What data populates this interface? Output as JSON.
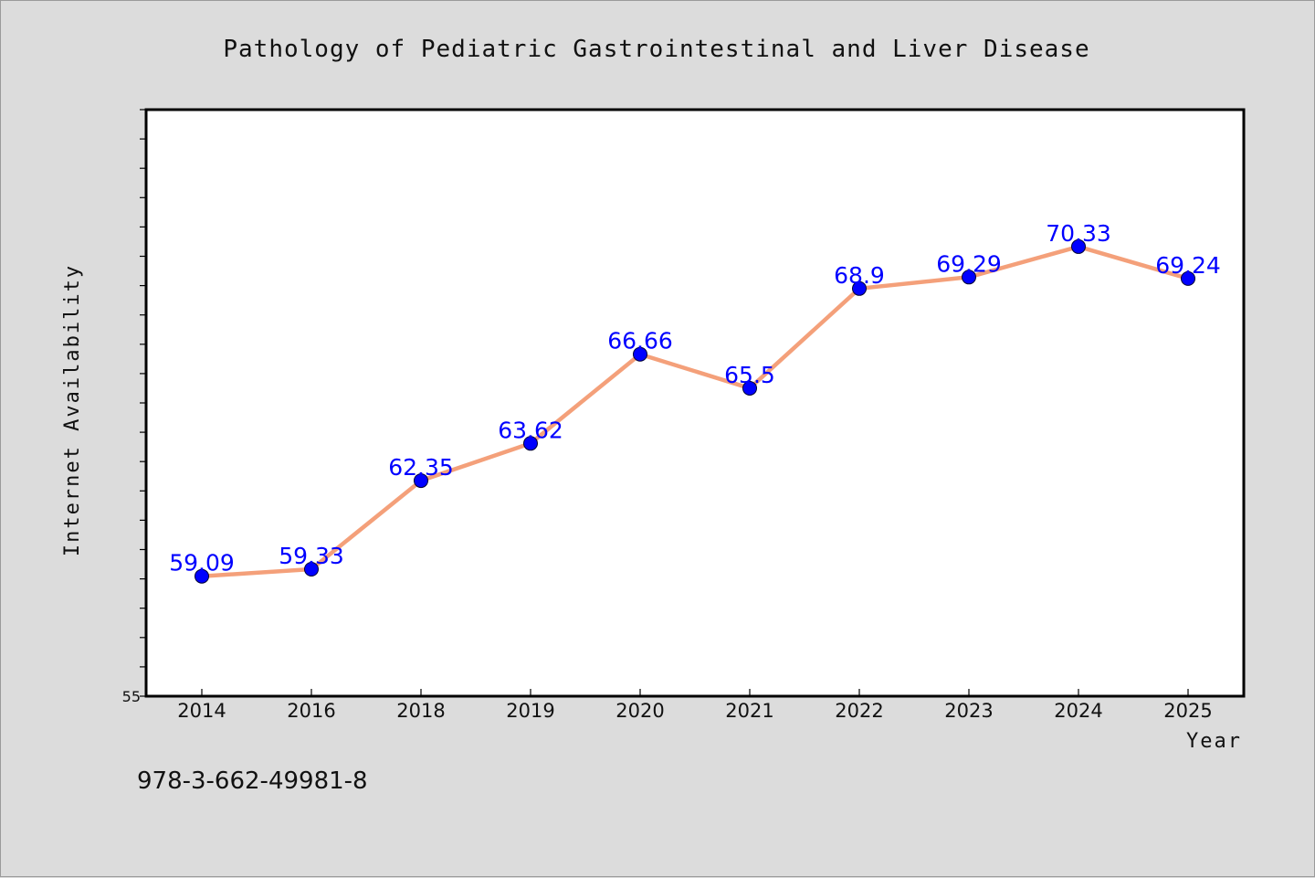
{
  "chart_data": {
    "type": "line",
    "title": "Pathology of Pediatric Gastrointestinal and Liver Disease",
    "xlabel": "Year",
    "ylabel": "Internet Availability",
    "categories": [
      "2014",
      "2016",
      "2018",
      "2019",
      "2020",
      "2021",
      "2022",
      "2023",
      "2024",
      "2025"
    ],
    "series": [
      {
        "values": [
          59.09,
          59.33,
          62.35,
          63.62,
          66.66,
          65.5,
          68.9,
          69.29,
          70.33,
          69.24
        ],
        "labels": [
          "59.09",
          "59.33",
          "62.35",
          "63.62",
          "66.66",
          "65.5",
          "68.9",
          "69.29",
          "70.33",
          "69.24"
        ],
        "line_color": "#f4a07a",
        "marker_color": "#0000ff"
      }
    ],
    "ylim": [
      55,
      75
    ],
    "y_tick_labels": [
      "55"
    ],
    "grid": false,
    "legend": "none",
    "data_label_color": "#0000ff"
  },
  "footer": {
    "isbn": "978-3-662-49981-8"
  }
}
